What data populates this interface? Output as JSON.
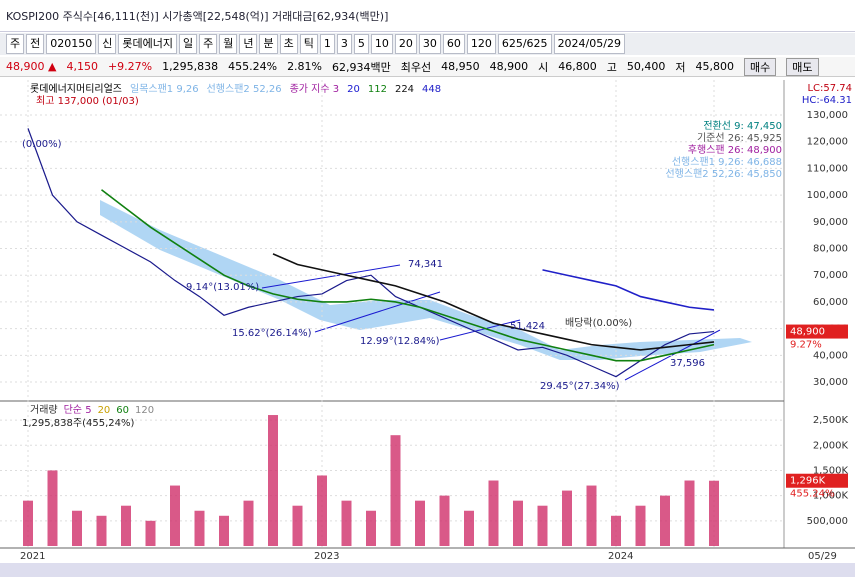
{
  "window": {
    "title": "KOSPI200 주식수[46,111(천)] 시가총액[22,548(억)] 거래대금[62,934(백만)]"
  },
  "toolbar": {
    "items": [
      "주",
      "전",
      "020150",
      "신",
      "롯데에너지",
      "일",
      "주",
      "월",
      "년",
      "분",
      "초",
      "틱",
      "1",
      "3",
      "5",
      "10",
      "20",
      "30",
      "60",
      "120",
      "625/625",
      "2024/05/29"
    ]
  },
  "quote": {
    "items": [
      "48,900 ▲",
      "4,150",
      "+9.27%",
      "1,295,838",
      "455.24%",
      "2.81%",
      "62,934백만",
      "최우선",
      "48,950",
      "48,900",
      "시",
      "46,800",
      "고",
      "50,400",
      "저",
      "45,800"
    ],
    "buttons": [
      "매수",
      "매도"
    ]
  },
  "chart_data": [
    {
      "type": "line",
      "legend": [
        "롯데에너지머티리얼즈",
        "일목스팬1 9,26",
        "선행스팬2 52,26",
        "종가 지수 3",
        "20",
        "112",
        "224",
        "448"
      ],
      "categories": [
        "2021",
        null,
        null,
        null,
        null,
        null,
        null,
        null,
        null,
        null,
        null,
        null,
        "2023",
        null,
        null,
        null,
        null,
        null,
        null,
        null,
        null,
        null,
        null,
        null,
        "2024",
        null,
        null,
        null,
        "05/29"
      ],
      "ylim": [
        26000,
        136000
      ],
      "yticks": [
        {
          "value": 30000,
          "label": "30,000"
        },
        {
          "value": 40000,
          "label": "40,000"
        },
        {
          "value": 50000,
          "label": "50,000"
        },
        {
          "value": 60000,
          "label": "60,000"
        },
        {
          "value": 70000,
          "label": "70,000"
        },
        {
          "value": 80000,
          "label": "80,000"
        },
        {
          "value": 90000,
          "label": "90,000"
        },
        {
          "value": 100000,
          "label": "100,000"
        },
        {
          "value": 110000,
          "label": "110,000"
        },
        {
          "value": 120000,
          "label": "120,000"
        },
        {
          "value": 130000,
          "label": "130,000"
        }
      ],
      "grid": true,
      "series": [
        {
          "name": "3",
          "color": "#1a1a8c",
          "values": [
            125000,
            100000,
            90000,
            85000,
            80000,
            75000,
            68000,
            62000,
            55000,
            58000,
            60000,
            62000,
            63000,
            68000,
            70000,
            62000,
            58000,
            54000,
            50000,
            46000,
            42000,
            43000,
            40000,
            36000,
            32000,
            38000,
            44000,
            48000,
            48900
          ]
        },
        {
          "name": "112",
          "color": "#108010",
          "values": [
            null,
            null,
            null,
            102000,
            95000,
            88000,
            82000,
            76000,
            70000,
            66000,
            63000,
            61000,
            60000,
            60000,
            61000,
            60000,
            58000,
            55000,
            52000,
            49000,
            46000,
            44000,
            42000,
            40000,
            38000,
            38000,
            40000,
            42000,
            44000
          ]
        },
        {
          "name": "224",
          "color": "#111111",
          "values": [
            null,
            null,
            null,
            null,
            null,
            null,
            null,
            null,
            null,
            null,
            78000,
            74000,
            72000,
            70000,
            68000,
            66000,
            63000,
            60000,
            56000,
            52000,
            50000,
            48000,
            46000,
            44000,
            43000,
            42000,
            43000,
            44000,
            45000
          ]
        },
        {
          "name": "448",
          "color": "#2020c8",
          "values": [
            null,
            null,
            null,
            null,
            null,
            null,
            null,
            null,
            null,
            null,
            null,
            null,
            null,
            null,
            null,
            null,
            null,
            null,
            null,
            null,
            null,
            72000,
            70000,
            68000,
            66000,
            62000,
            60000,
            58000,
            57000
          ]
        }
      ],
      "annotations": [
        "최고 137,000 (01/03)",
        "(0.00%)",
        "전환선 9: 47,450",
        "기준선 26: 45,925",
        "후행스팬 26: 48,900",
        "선행스팬1 9,26: 46,688",
        "선행스팬2 52,26: 45,850",
        "74,341",
        "9.14°(13.01%)",
        "15.62°(26.14%)",
        "12.99°(12.84%)",
        "51,424",
        "배당락(0.00%)",
        "29.45°(27.34%)",
        "37,596"
      ],
      "side": [
        "LC:57.74",
        "HC:-64.31"
      ],
      "current": {
        "value": 48900,
        "label": "48,900"
      },
      "current_pct": "9.27%"
    },
    {
      "type": "bar",
      "legend": [
        "거래량",
        "단순 5",
        "20",
        "60",
        "120"
      ],
      "summary": "1,295,838주(455,24%)",
      "values": [
        900000,
        1500000,
        700000,
        600000,
        800000,
        500000,
        1200000,
        700000,
        600000,
        900000,
        2600000,
        800000,
        1400000,
        900000,
        700000,
        2200000,
        900000,
        1000000,
        700000,
        1300000,
        900000,
        800000,
        1100000,
        1200000,
        600000,
        800000,
        1000000,
        1300000,
        1295838
      ],
      "color": "#d0306a",
      "ylim": [
        0,
        2700000
      ],
      "yticks": [
        {
          "value": 500000,
          "label": "500,000"
        },
        {
          "value": 1000000,
          "label": "1,000K"
        },
        {
          "value": 1500000,
          "label": "1,500K"
        },
        {
          "value": 2000000,
          "label": "2,000K"
        },
        {
          "value": 2500000,
          "label": "2,500K"
        }
      ],
      "current": {
        "value": 1295838,
        "label": "1,296K"
      },
      "current_pct": "455.24%"
    }
  ]
}
